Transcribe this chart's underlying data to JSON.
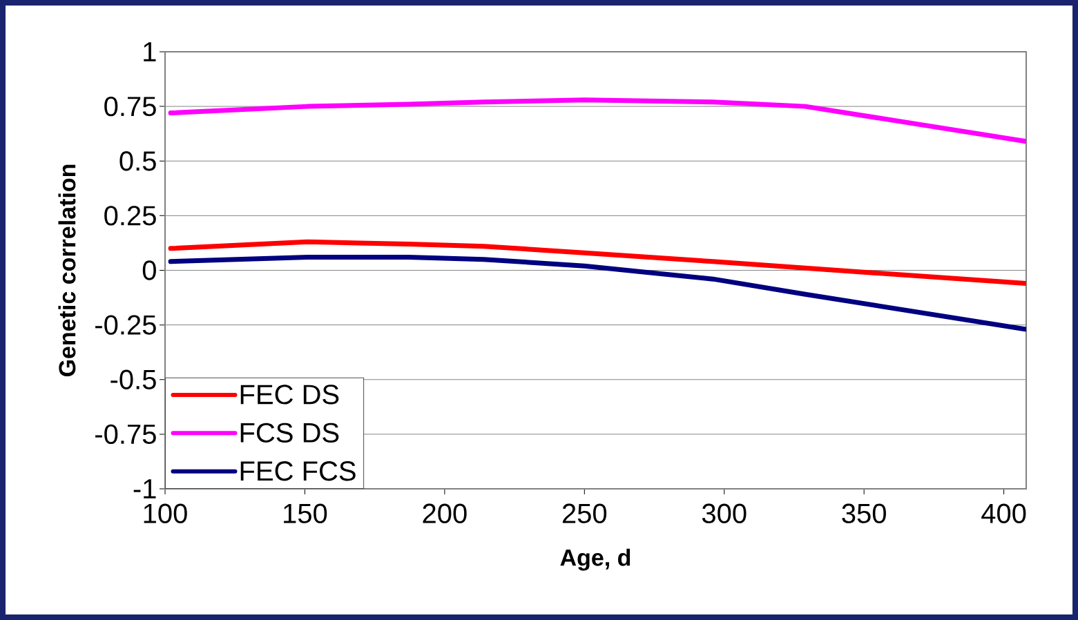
{
  "chart_data": {
    "type": "line",
    "xlabel": "Age, d",
    "ylabel": "Genetic correlation",
    "x": [
      102,
      151,
      187,
      214,
      250,
      296,
      329,
      408
    ],
    "series": [
      {
        "name": "FEC DS",
        "color": "#ff0000",
        "values": [
          0.1,
          0.13,
          0.12,
          0.11,
          0.08,
          0.04,
          0.01,
          -0.06
        ]
      },
      {
        "name": "FCS DS",
        "color": "#ff00ff",
        "values": [
          0.72,
          0.75,
          0.76,
          0.77,
          0.78,
          0.77,
          0.75,
          0.59
        ]
      },
      {
        "name": "FEC FCS",
        "color": "#000080",
        "values": [
          0.04,
          0.06,
          0.06,
          0.05,
          0.02,
          -0.04,
          -0.11,
          -0.27
        ]
      }
    ],
    "xlim": [
      100,
      408
    ],
    "xticks": [
      100,
      150,
      200,
      250,
      300,
      350,
      400
    ],
    "ylim": [
      -1,
      1
    ],
    "yticks": [
      -1,
      -0.75,
      -0.5,
      -0.25,
      0,
      0.25,
      0.5,
      0.75,
      1
    ],
    "grid": "y",
    "legend": "bottom left",
    "marker": "none",
    "line_style": "solid"
  }
}
